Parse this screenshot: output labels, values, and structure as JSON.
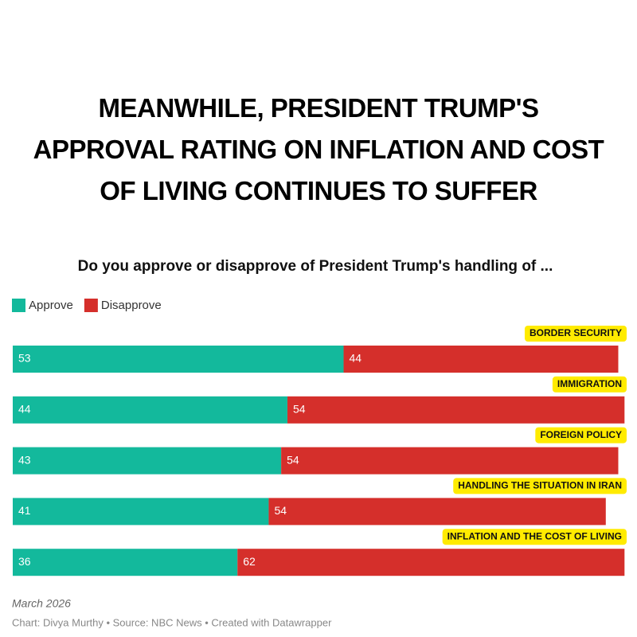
{
  "chart_data": {
    "type": "stacked-bar",
    "title": "MEANWHILE, PRESIDENT TRUMP'S APPROVAL RATING ON INFLATION AND COST OF LIVING CONTINUES TO SUFFER",
    "subtitle": "Do you approve or disapprove of President Trump's handling of ...",
    "categories": [
      "BORDER SECURITY",
      "IMMIGRATION",
      "FOREIGN POLICY",
      "HANDLING THE SITUATION IN IRAN",
      "INFLATION AND THE COST OF LIVING"
    ],
    "series": [
      {
        "name": "Approve",
        "color": "#13b99c",
        "values": [
          53,
          44,
          43,
          41,
          36
        ]
      },
      {
        "name": "Disapprove",
        "color": "#d52f2b",
        "values": [
          44,
          54,
          54,
          54,
          62
        ]
      }
    ],
    "xlim": [
      0,
      100
    ],
    "note": "March 2026",
    "footer": "Chart: Divya Murthy • Source: NBC News • Created with Datawrapper"
  }
}
